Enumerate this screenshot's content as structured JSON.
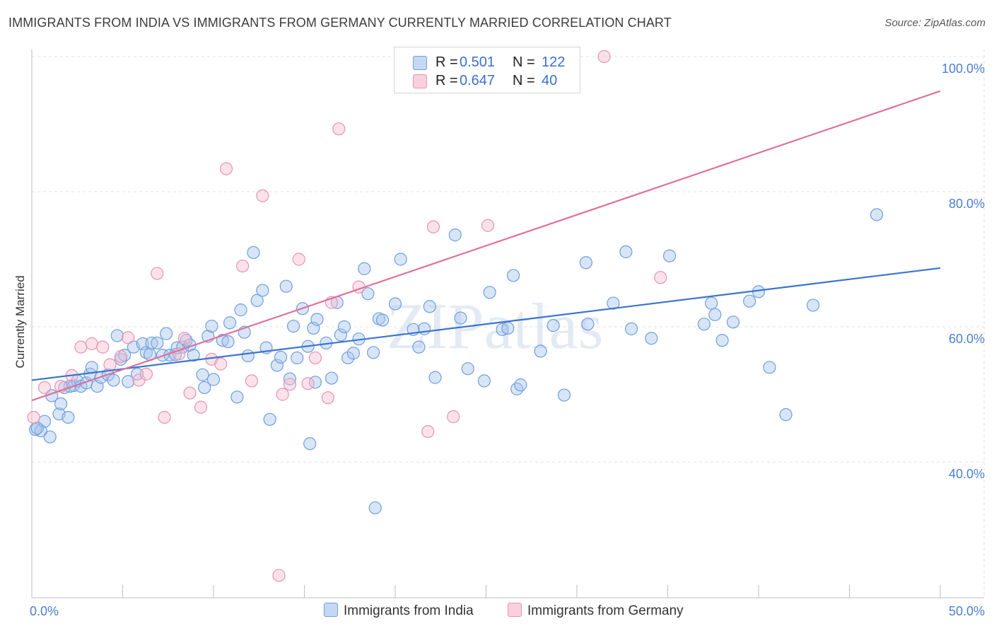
{
  "title": "IMMIGRANTS FROM INDIA VS IMMIGRANTS FROM GERMANY CURRENTLY MARRIED CORRELATION CHART",
  "source": "Source: ZipAtlas.com",
  "watermark": "ZIPatlas",
  "legend": {
    "rows": [
      {
        "r_label": "R =",
        "r_value": "0.501",
        "n_label": "N =",
        "n_value": "122"
      },
      {
        "r_label": "R =",
        "r_value": "0.647",
        "n_label": "N =",
        "n_value": "40"
      }
    ]
  },
  "bottom_legend": {
    "india": "Immigrants from India",
    "germany": "Immigrants from Germany"
  },
  "colors": {
    "india_fill": "#a8c6ee",
    "india_stroke": "#6f9fdc",
    "india_line": "#3a74cf",
    "germany_fill": "#f6bfd0",
    "germany_stroke": "#e993b1",
    "germany_line": "#e0709a",
    "tick": "#4a7fcf",
    "grid": "#e2e2e2"
  },
  "chart_data": {
    "type": "scatter",
    "xlabel": "",
    "ylabel": "Currently Married",
    "xlim": [
      0,
      50
    ],
    "ylim": [
      20,
      102
    ],
    "x_tick_labels": [
      "0.0%",
      "50.0%"
    ],
    "y_ticks": [
      40,
      60,
      80,
      100
    ],
    "y_tick_labels": [
      "40.0%",
      "60.0%",
      "80.0%",
      "100.0%"
    ],
    "grid": true,
    "legend_placement": "top-center",
    "series": [
      {
        "name": "Immigrants from India",
        "color": "#a8c6ee",
        "trend": {
          "x": [
            0,
            50
          ],
          "y": [
            52.1,
            68.7
          ]
        },
        "points": [
          [
            0.2,
            44.8
          ],
          [
            0.5,
            44.6
          ],
          [
            0.7,
            46.0
          ],
          [
            1.0,
            43.7
          ],
          [
            1.1,
            49.8
          ],
          [
            1.5,
            47.1
          ],
          [
            1.6,
            48.6
          ],
          [
            1.8,
            51.0
          ],
          [
            2.0,
            46.6
          ],
          [
            2.3,
            51.3
          ],
          [
            2.5,
            52.0
          ],
          [
            2.7,
            51.2
          ],
          [
            3.0,
            51.7
          ],
          [
            3.2,
            53.0
          ],
          [
            3.3,
            54.0
          ],
          [
            3.6,
            51.2
          ],
          [
            3.8,
            52.5
          ],
          [
            4.2,
            52.9
          ],
          [
            4.5,
            52.1
          ],
          [
            4.7,
            58.7
          ],
          [
            4.9,
            55.2
          ],
          [
            5.1,
            55.8
          ],
          [
            5.3,
            51.9
          ],
          [
            5.6,
            57.0
          ],
          [
            5.8,
            53.0
          ],
          [
            6.1,
            57.5
          ],
          [
            6.3,
            56.2
          ],
          [
            6.5,
            55.9
          ],
          [
            6.6,
            57.6
          ],
          [
            6.9,
            57.6
          ],
          [
            7.2,
            55.8
          ],
          [
            7.4,
            59.0
          ],
          [
            7.6,
            55.8
          ],
          [
            7.9,
            55.9
          ],
          [
            8.0,
            56.9
          ],
          [
            8.3,
            57.0
          ],
          [
            8.5,
            58.0
          ],
          [
            8.7,
            57.3
          ],
          [
            8.9,
            55.8
          ],
          [
            9.4,
            52.9
          ],
          [
            9.5,
            51.0
          ],
          [
            9.7,
            58.6
          ],
          [
            9.9,
            60.1
          ],
          [
            10.0,
            52.2
          ],
          [
            10.5,
            58.0
          ],
          [
            10.8,
            57.8
          ],
          [
            10.9,
            60.6
          ],
          [
            11.3,
            49.6
          ],
          [
            11.5,
            62.5
          ],
          [
            11.7,
            59.2
          ],
          [
            11.9,
            55.7
          ],
          [
            12.2,
            71.0
          ],
          [
            12.4,
            63.9
          ],
          [
            12.7,
            65.4
          ],
          [
            12.9,
            56.9
          ],
          [
            13.1,
            46.3
          ],
          [
            13.5,
            54.3
          ],
          [
            13.7,
            55.5
          ],
          [
            14.0,
            66.0
          ],
          [
            14.2,
            52.3
          ],
          [
            14.4,
            60.1
          ],
          [
            14.6,
            55.4
          ],
          [
            14.9,
            62.7
          ],
          [
            15.2,
            57.1
          ],
          [
            15.3,
            42.7
          ],
          [
            15.5,
            59.8
          ],
          [
            15.7,
            61.1
          ],
          [
            15.6,
            51.8
          ],
          [
            16.2,
            57.6
          ],
          [
            16.5,
            52.4
          ],
          [
            16.8,
            63.6
          ],
          [
            17.0,
            58.8
          ],
          [
            17.2,
            60.0
          ],
          [
            17.4,
            55.4
          ],
          [
            17.7,
            56.1
          ],
          [
            18.0,
            58.2
          ],
          [
            18.3,
            68.6
          ],
          [
            18.5,
            64.9
          ],
          [
            18.8,
            56.2
          ],
          [
            19.1,
            61.2
          ],
          [
            19.3,
            61.0
          ],
          [
            18.9,
            33.2
          ],
          [
            20.0,
            63.4
          ],
          [
            20.3,
            70.0
          ],
          [
            21.0,
            59.6
          ],
          [
            21.3,
            57.0
          ],
          [
            21.6,
            59.7
          ],
          [
            21.9,
            63.0
          ],
          [
            22.2,
            52.5
          ],
          [
            23.3,
            73.6
          ],
          [
            23.6,
            61.3
          ],
          [
            24.0,
            53.8
          ],
          [
            24.9,
            52.0
          ],
          [
            25.2,
            65.1
          ],
          [
            25.9,
            59.6
          ],
          [
            26.2,
            59.8
          ],
          [
            26.5,
            67.6
          ],
          [
            26.7,
            50.8
          ],
          [
            26.9,
            51.4
          ],
          [
            28.0,
            56.4
          ],
          [
            28.7,
            60.2
          ],
          [
            29.3,
            49.9
          ],
          [
            30.5,
            69.5
          ],
          [
            30.6,
            60.4
          ],
          [
            32.0,
            63.5
          ],
          [
            32.7,
            71.1
          ],
          [
            33.0,
            59.7
          ],
          [
            34.1,
            58.3
          ],
          [
            35.1,
            70.5
          ],
          [
            37.0,
            60.4
          ],
          [
            37.4,
            63.5
          ],
          [
            37.6,
            61.8
          ],
          [
            38.0,
            58.0
          ],
          [
            38.6,
            60.7
          ],
          [
            39.5,
            63.8
          ],
          [
            40.0,
            65.2
          ],
          [
            40.6,
            54.0
          ],
          [
            41.5,
            47.0
          ],
          [
            43.0,
            63.2
          ],
          [
            46.5,
            76.6
          ],
          [
            0.3,
            45.0
          ],
          [
            2.1,
            51.2
          ]
        ]
      },
      {
        "name": "Immigrants from Germany",
        "color": "#f6bfd0",
        "trend": {
          "x": [
            0,
            50
          ],
          "y": [
            49.1,
            94.9
          ]
        },
        "points": [
          [
            0.1,
            46.6
          ],
          [
            0.7,
            51.0
          ],
          [
            1.6,
            51.2
          ],
          [
            2.2,
            52.8
          ],
          [
            2.7,
            57.0
          ],
          [
            3.3,
            57.5
          ],
          [
            3.9,
            57.0
          ],
          [
            4.3,
            54.4
          ],
          [
            4.9,
            55.6
          ],
          [
            5.3,
            58.4
          ],
          [
            5.9,
            52.1
          ],
          [
            6.3,
            53.0
          ],
          [
            6.9,
            67.9
          ],
          [
            7.3,
            46.6
          ],
          [
            8.1,
            56.0
          ],
          [
            8.4,
            58.3
          ],
          [
            8.7,
            50.2
          ],
          [
            9.3,
            48.1
          ],
          [
            9.9,
            55.2
          ],
          [
            10.4,
            54.5
          ],
          [
            10.7,
            83.4
          ],
          [
            11.6,
            69.0
          ],
          [
            12.1,
            52.0
          ],
          [
            12.7,
            79.4
          ],
          [
            13.6,
            23.2
          ],
          [
            13.8,
            50.0
          ],
          [
            14.2,
            51.5
          ],
          [
            14.7,
            70.0
          ],
          [
            15.2,
            51.6
          ],
          [
            15.6,
            55.4
          ],
          [
            16.3,
            49.5
          ],
          [
            16.5,
            63.6
          ],
          [
            16.9,
            89.3
          ],
          [
            18.0,
            65.9
          ],
          [
            21.8,
            44.5
          ],
          [
            22.1,
            74.8
          ],
          [
            23.2,
            46.7
          ],
          [
            25.1,
            75.0
          ],
          [
            31.5,
            100.0
          ],
          [
            34.6,
            67.3
          ]
        ]
      }
    ]
  }
}
